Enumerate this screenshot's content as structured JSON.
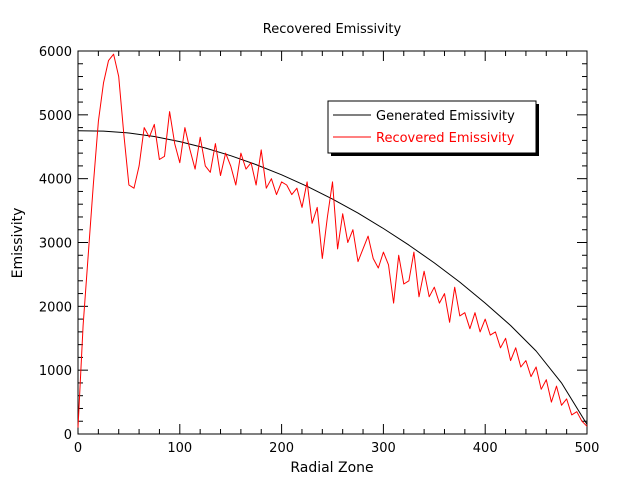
{
  "chart_data": {
    "type": "line",
    "title": "Recovered Emissivity",
    "xlabel": "Radial Zone",
    "ylabel": "Emissivity",
    "xlim": [
      0,
      500
    ],
    "ylim": [
      0,
      6000
    ],
    "xticks": [
      "0",
      "100",
      "200",
      "300",
      "400",
      "500"
    ],
    "yticks": [
      "0",
      "1000",
      "2000",
      "3000",
      "4000",
      "5000",
      "6000"
    ],
    "grid": false,
    "legend": "top-right",
    "series": [
      {
        "name": "Generated Emissivity",
        "color": "#000000",
        "x": [
          0,
          25,
          50,
          75,
          100,
          125,
          150,
          175,
          200,
          225,
          250,
          275,
          300,
          325,
          350,
          375,
          400,
          425,
          450,
          475,
          500
        ],
        "values": [
          4750,
          4745,
          4715,
          4660,
          4580,
          4480,
          4360,
          4220,
          4060,
          3880,
          3680,
          3460,
          3220,
          2960,
          2680,
          2380,
          2050,
          1700,
          1300,
          800,
          150
        ]
      },
      {
        "name": "Recovered Emissivity",
        "color": "#ff0000",
        "x": [
          0,
          5,
          10,
          15,
          20,
          25,
          30,
          35,
          40,
          45,
          50,
          55,
          60,
          65,
          70,
          75,
          80,
          85,
          90,
          95,
          100,
          105,
          110,
          115,
          120,
          125,
          130,
          135,
          140,
          145,
          150,
          155,
          160,
          165,
          170,
          175,
          180,
          185,
          190,
          195,
          200,
          205,
          210,
          215,
          220,
          225,
          230,
          235,
          240,
          245,
          250,
          255,
          260,
          265,
          270,
          275,
          280,
          285,
          290,
          295,
          300,
          305,
          310,
          315,
          320,
          325,
          330,
          335,
          340,
          345,
          350,
          355,
          360,
          365,
          370,
          375,
          380,
          385,
          390,
          395,
          400,
          405,
          410,
          415,
          420,
          425,
          430,
          435,
          440,
          445,
          450,
          455,
          460,
          465,
          470,
          475,
          480,
          485,
          490,
          495,
          500
        ],
        "values": [
          100,
          1700,
          2800,
          3900,
          4900,
          5500,
          5850,
          5950,
          5600,
          4700,
          3900,
          3850,
          4200,
          4800,
          4650,
          4850,
          4300,
          4350,
          5050,
          4550,
          4250,
          4800,
          4450,
          4150,
          4650,
          4200,
          4100,
          4550,
          4050,
          4400,
          4200,
          3900,
          4400,
          4150,
          4250,
          3900,
          4450,
          3850,
          4000,
          3750,
          3950,
          3900,
          3750,
          3850,
          3550,
          3950,
          3300,
          3550,
          2750,
          3400,
          3950,
          2900,
          3450,
          3000,
          3200,
          2700,
          2900,
          3100,
          2750,
          2600,
          2850,
          2650,
          2050,
          2800,
          2350,
          2400,
          2850,
          2150,
          2550,
          2150,
          2300,
          2050,
          2200,
          1750,
          2300,
          1850,
          1900,
          1650,
          1900,
          1600,
          1800,
          1550,
          1600,
          1350,
          1500,
          1150,
          1350,
          1050,
          1150,
          900,
          1050,
          700,
          850,
          500,
          750,
          450,
          550,
          300,
          350,
          200,
          120
        ]
      }
    ]
  }
}
